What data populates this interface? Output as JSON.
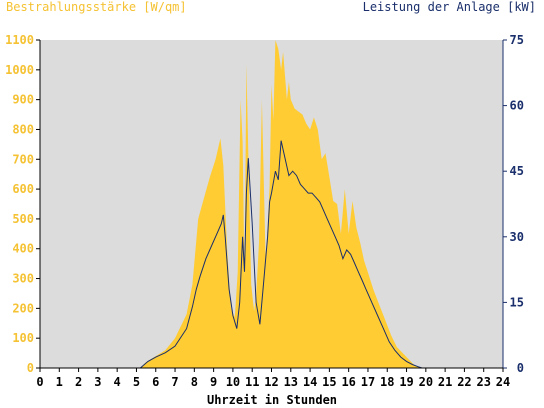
{
  "chart_data": {
    "type": "area",
    "y_left_label": "Bestrahlungsstärke [W/qm]",
    "y_right_label": "Leistung der Anlage [kW]",
    "xlabel": "Uhrzeit in Stunden",
    "x_ticks": [
      "0",
      "1",
      "2",
      "3",
      "4",
      "5",
      "6",
      "7",
      "8",
      "9",
      "10",
      "11",
      "12",
      "13",
      "14",
      "15",
      "16",
      "17",
      "18",
      "19",
      "20",
      "21",
      "22",
      "23",
      "24"
    ],
    "y_left_ticks": [
      "0",
      "100",
      "200",
      "300",
      "400",
      "500",
      "600",
      "700",
      "800",
      "900",
      "1000",
      "1100"
    ],
    "y_right_ticks": [
      "0",
      "15",
      "30",
      "45",
      "60",
      "75"
    ],
    "xlim": [
      0,
      24
    ],
    "y_left_lim": [
      0,
      1100
    ],
    "y_right_lim": [
      0,
      75
    ],
    "colors": {
      "irradiance": "#ffcc33",
      "power": "#1a2f6b",
      "plot_bg": "#dcdcdc"
    },
    "series": [
      {
        "name": "Bestrahlungsstärke [W/qm]",
        "axis": "left",
        "style": "area",
        "x": [
          0,
          5.2,
          5.5,
          6.0,
          6.5,
          7.0,
          7.3,
          7.6,
          7.9,
          8.2,
          8.5,
          8.8,
          9.1,
          9.35,
          9.5,
          9.7,
          9.9,
          10.1,
          10.25,
          10.4,
          10.5,
          10.6,
          10.7,
          10.8,
          10.95,
          11.1,
          11.2,
          11.35,
          11.5,
          11.7,
          11.9,
          12.0,
          12.1,
          12.2,
          12.35,
          12.5,
          12.6,
          12.7,
          12.8,
          12.9,
          13.0,
          13.2,
          13.4,
          13.6,
          13.8,
          14.0,
          14.2,
          14.4,
          14.6,
          14.8,
          15.0,
          15.2,
          15.4,
          15.6,
          15.8,
          16.0,
          16.2,
          16.4,
          16.6,
          16.8,
          17.0,
          17.3,
          17.6,
          17.9,
          18.2,
          18.5,
          18.8,
          19.1,
          19.4,
          19.7,
          19.9,
          24
        ],
        "values": [
          0,
          0,
          20,
          40,
          60,
          100,
          140,
          180,
          280,
          500,
          570,
          640,
          700,
          770,
          680,
          400,
          200,
          170,
          320,
          900,
          760,
          300,
          1020,
          720,
          280,
          190,
          240,
          420,
          900,
          350,
          610,
          950,
          830,
          1100,
          1070,
          1000,
          1060,
          980,
          900,
          960,
          900,
          870,
          860,
          850,
          820,
          800,
          840,
          800,
          700,
          720,
          640,
          560,
          550,
          450,
          600,
          450,
          560,
          470,
          420,
          360,
          320,
          260,
          210,
          160,
          110,
          70,
          50,
          30,
          10,
          3,
          0,
          0
        ]
      },
      {
        "name": "Leistung der Anlage [kW]",
        "axis": "right",
        "style": "line",
        "x": [
          0,
          5.2,
          5.6,
          6.0,
          6.5,
          7.0,
          7.3,
          7.6,
          7.9,
          8.1,
          8.3,
          8.6,
          8.9,
          9.2,
          9.4,
          9.5,
          9.6,
          9.8,
          10.0,
          10.2,
          10.35,
          10.5,
          10.6,
          10.7,
          10.8,
          11.0,
          11.2,
          11.4,
          11.6,
          11.8,
          11.9,
          12.0,
          12.2,
          12.35,
          12.5,
          12.7,
          12.9,
          13.1,
          13.3,
          13.5,
          13.7,
          13.9,
          14.1,
          14.3,
          14.5,
          14.7,
          14.9,
          15.1,
          15.3,
          15.5,
          15.7,
          15.9,
          16.1,
          16.3,
          16.5,
          16.7,
          16.9,
          17.2,
          17.5,
          17.8,
          18.1,
          18.4,
          18.7,
          19.0,
          19.3,
          19.6,
          19.8,
          24
        ],
        "values": [
          0,
          0,
          1.5,
          2.5,
          3.5,
          5,
          7,
          9,
          14,
          18,
          21,
          25,
          28,
          31,
          33,
          35,
          30,
          18,
          12,
          9,
          15,
          30,
          22,
          40,
          48,
          33,
          15,
          10,
          20,
          30,
          38,
          40,
          45,
          43,
          52,
          48,
          44,
          45,
          44,
          42,
          41,
          40,
          40,
          39,
          38,
          36,
          34,
          32,
          30,
          28,
          25,
          27,
          26,
          24,
          22,
          20,
          18,
          15,
          12,
          9,
          6,
          4,
          2.5,
          1.5,
          0.8,
          0.3,
          0,
          0
        ]
      }
    ]
  }
}
